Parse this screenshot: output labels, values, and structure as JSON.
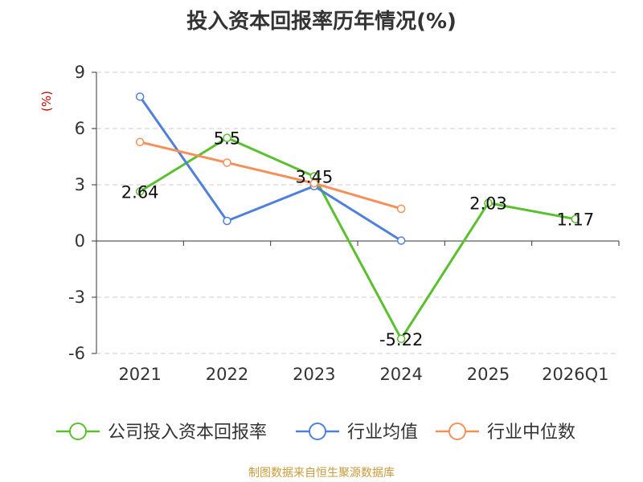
{
  "chart_data": {
    "type": "line",
    "title": "投入资本回报率历年情况(%)",
    "ylabel": "(%)",
    "categories": [
      "2021",
      "2022",
      "2023",
      "2024",
      "2025",
      "2026Q1"
    ],
    "yticks": [
      9,
      6,
      3,
      0,
      -3,
      -6
    ],
    "ylim": [
      -6,
      9
    ],
    "grid": "horizontal-dashed",
    "legend_position": "bottom",
    "series": [
      {
        "name": "公司投入资本回报率",
        "color": "#5ac02e",
        "values": [
          2.64,
          5.5,
          3.45,
          -5.22,
          2.03,
          1.17
        ],
        "labels": [
          "2.64",
          "5.5",
          "3.45",
          "-5.22",
          "2.03",
          "1.17"
        ]
      },
      {
        "name": "行业均值",
        "color": "#4e80dc",
        "values": [
          7.7,
          1.07,
          2.93,
          0.02,
          null,
          null
        ],
        "labels": null
      },
      {
        "name": "行业中位数",
        "color": "#f5905a",
        "values": [
          5.28,
          4.18,
          3.08,
          1.72,
          null,
          null
        ],
        "labels": null
      }
    ]
  },
  "colors": {
    "ylabel": "#cc0000",
    "source": "#c89a3a",
    "grid": "#cccccc",
    "axis": "#333333"
  },
  "source_note": "制图数据来自恒生聚源数据库"
}
